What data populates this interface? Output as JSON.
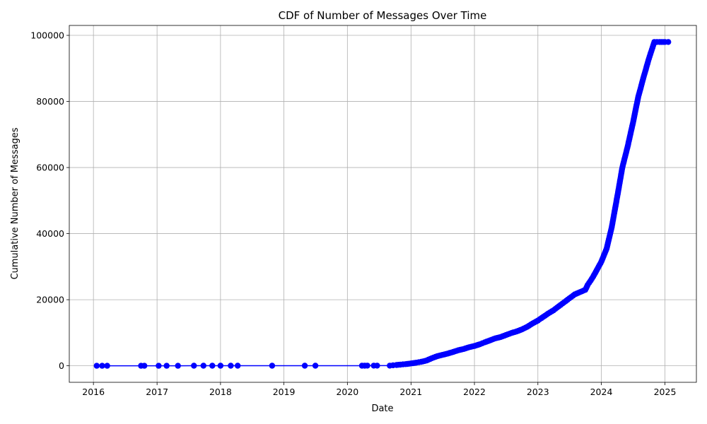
{
  "chart_data": {
    "type": "line",
    "title": "CDF of Number of Messages Over Time",
    "xlabel": "Date",
    "ylabel": "Cumulative Number of Messages",
    "grid": true,
    "legend": "none",
    "xlim": [
      "2015-08-15",
      "2025-07-01"
    ],
    "ylim": [
      -5000,
      103000
    ],
    "x_ticks": [
      "2016",
      "2017",
      "2018",
      "2019",
      "2020",
      "2021",
      "2022",
      "2023",
      "2024",
      "2025"
    ],
    "y_ticks": [
      0,
      20000,
      40000,
      60000,
      80000,
      100000
    ],
    "series": [
      {
        "color": "#0000ff",
        "marker": "circle",
        "x": [
          "2016-01-20",
          "2016-02-20",
          "2016-03-20",
          "2016-10-01",
          "2016-10-20",
          "2017-01-10",
          "2017-02-25",
          "2017-05-01",
          "2017-08-01",
          "2017-09-25",
          "2017-11-15",
          "2018-01-01",
          "2018-03-01",
          "2018-04-10",
          "2018-10-25",
          "2019-05-01",
          "2019-07-01",
          "2020-03-25",
          "2020-04-10",
          "2020-04-25",
          "2020-06-01",
          "2020-06-20",
          "2020-09-01",
          "2020-09-20",
          "2020-10-10",
          "2020-11-01",
          "2020-12-01",
          "2021-01-01",
          "2021-02-01",
          "2021-03-01",
          "2021-04-01",
          "2021-05-01",
          "2021-06-01",
          "2021-07-01",
          "2021-08-01",
          "2021-09-01",
          "2021-10-01",
          "2021-11-01",
          "2021-12-01",
          "2022-01-01",
          "2022-02-01",
          "2022-03-01",
          "2022-04-01",
          "2022-05-01",
          "2022-06-01",
          "2022-07-01",
          "2022-08-01",
          "2022-09-01",
          "2022-10-01",
          "2022-11-01",
          "2022-12-01",
          "2023-01-01",
          "2023-02-01",
          "2023-03-01",
          "2023-04-01",
          "2023-05-01",
          "2023-06-01",
          "2023-07-01",
          "2023-08-01",
          "2023-09-01",
          "2023-10-01",
          "2023-10-15",
          "2023-11-01",
          "2023-11-15",
          "2023-12-01",
          "2024-01-01",
          "2024-02-01",
          "2024-03-01",
          "2024-04-01",
          "2024-05-01",
          "2024-06-01",
          "2024-07-01",
          "2024-08-01",
          "2024-09-01",
          "2024-10-01",
          "2024-11-01",
          "2024-12-01",
          "2025-01-01",
          "2025-01-20"
        ],
        "y": [
          0,
          2,
          4,
          6,
          8,
          10,
          12,
          14,
          16,
          18,
          20,
          22,
          24,
          26,
          28,
          30,
          32,
          34,
          36,
          38,
          40,
          42,
          50,
          150,
          250,
          350,
          500,
          700,
          950,
          1200,
          1600,
          2300,
          2900,
          3300,
          3700,
          4200,
          4700,
          5100,
          5600,
          6000,
          6500,
          7100,
          7700,
          8300,
          8700,
          9300,
          9900,
          10400,
          11000,
          11800,
          12800,
          13700,
          14800,
          15800,
          16800,
          18000,
          19200,
          20400,
          21600,
          22300,
          23000,
          24500,
          25800,
          27000,
          28500,
          31500,
          35500,
          42000,
          51000,
          60000,
          66500,
          73500,
          81500,
          87500,
          93000,
          98000,
          98000,
          98000,
          98000
        ]
      }
    ]
  }
}
